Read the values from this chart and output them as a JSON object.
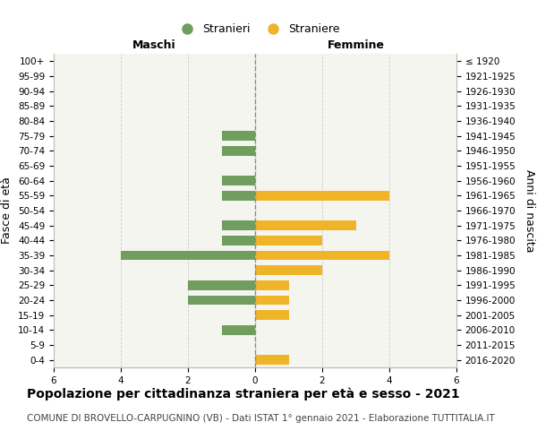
{
  "age_groups": [
    "0-4",
    "5-9",
    "10-14",
    "15-19",
    "20-24",
    "25-29",
    "30-34",
    "35-39",
    "40-44",
    "45-49",
    "50-54",
    "55-59",
    "60-64",
    "65-69",
    "70-74",
    "75-79",
    "80-84",
    "85-89",
    "90-94",
    "95-99",
    "100+"
  ],
  "birth_years": [
    "2016-2020",
    "2011-2015",
    "2006-2010",
    "2001-2005",
    "1996-2000",
    "1991-1995",
    "1986-1990",
    "1981-1985",
    "1976-1980",
    "1971-1975",
    "1966-1970",
    "1961-1965",
    "1956-1960",
    "1951-1955",
    "1946-1950",
    "1941-1945",
    "1936-1940",
    "1931-1935",
    "1926-1930",
    "1921-1925",
    "≤ 1920"
  ],
  "males": [
    0,
    0,
    1,
    0,
    2,
    2,
    0,
    4,
    1,
    1,
    0,
    1,
    1,
    0,
    1,
    1,
    0,
    0,
    0,
    0,
    0
  ],
  "females": [
    1,
    0,
    0,
    1,
    1,
    1,
    2,
    4,
    2,
    3,
    0,
    4,
    0,
    0,
    0,
    0,
    0,
    0,
    0,
    0,
    0
  ],
  "male_color": "#6f9e5e",
  "female_color": "#f0b429",
  "background_color": "#f5f5f0",
  "grid_color": "#cccccc",
  "bar_height": 0.65,
  "xlim": 6,
  "title": "Popolazione per cittadinanza straniera per età e sesso - 2021",
  "subtitle": "COMUNE DI BROVELLO-CARPUGNINO (VB) - Dati ISTAT 1° gennaio 2021 - Elaborazione TUTTITALIA.IT",
  "xlabel_left": "Maschi",
  "xlabel_right": "Femmine",
  "ylabel_left": "Fasce di età",
  "ylabel_right": "Anni di nascita",
  "legend_male": "Stranieri",
  "legend_female": "Straniere",
  "centerline_color": "#888888",
  "title_fontsize": 10,
  "subtitle_fontsize": 7.5,
  "axis_label_fontsize": 9,
  "tick_fontsize": 7.5
}
